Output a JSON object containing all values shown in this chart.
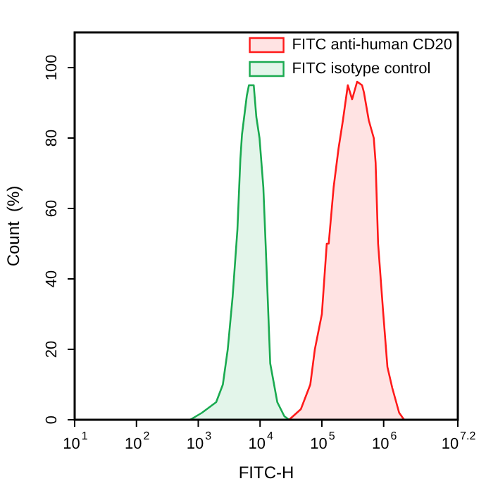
{
  "chart_data": {
    "type": "area",
    "xlabel": "FITC-H",
    "ylabel": "Count  (%)",
    "log": "x",
    "grid": false,
    "legend": "top right",
    "xlim": [
      10,
      15848932
    ],
    "ylim": [
      0,
      110
    ],
    "xticks": [
      {
        "value": 10,
        "label": "10$^{1}$"
      },
      {
        "value": 100,
        "label": "10$^{2}$"
      },
      {
        "value": 1000,
        "label": "10$^{3}$"
      },
      {
        "value": 10000,
        "label": "10$^{4}$"
      },
      {
        "value": 100000,
        "label": "10$^{5}$"
      },
      {
        "value": 1000000,
        "label": "10$^{6}$"
      },
      {
        "value": 15848932,
        "label": "10$^{7.2}$"
      }
    ],
    "yticks": [
      0,
      20,
      40,
      60,
      80,
      100
    ],
    "series": [
      {
        "name": "FITC anti-human CD20",
        "color": "#ff1a1a",
        "x": [
          29500,
          45700,
          65000,
          77000,
          100000,
          120000,
          129000,
          155000,
          186000,
          219000,
          263000,
          309000,
          372000,
          447000,
          479000,
          575000,
          692000,
          741000,
          813000,
          977000,
          1150000,
          1380000,
          1780000,
          2140000
        ],
        "values": [
          0,
          3,
          10,
          20,
          30,
          50,
          50,
          66,
          77,
          85,
          95,
          91,
          96,
          95,
          93,
          85,
          80,
          73,
          50,
          31,
          15,
          9,
          2,
          0
        ]
      },
      {
        "name": "FITC isotype control",
        "color": "#1aaa50",
        "x": [
          740,
          1150,
          1950,
          2500,
          3000,
          3600,
          4300,
          4800,
          5100,
          6100,
          6600,
          7900,
          8700,
          9800,
          11300,
          12300,
          14600,
          19000,
          24700,
          29500
        ],
        "values": [
          0,
          2,
          5,
          10,
          20,
          35,
          54,
          74,
          81,
          92,
          95,
          95,
          86,
          80,
          66,
          50,
          16,
          5,
          1,
          0
        ]
      }
    ]
  }
}
